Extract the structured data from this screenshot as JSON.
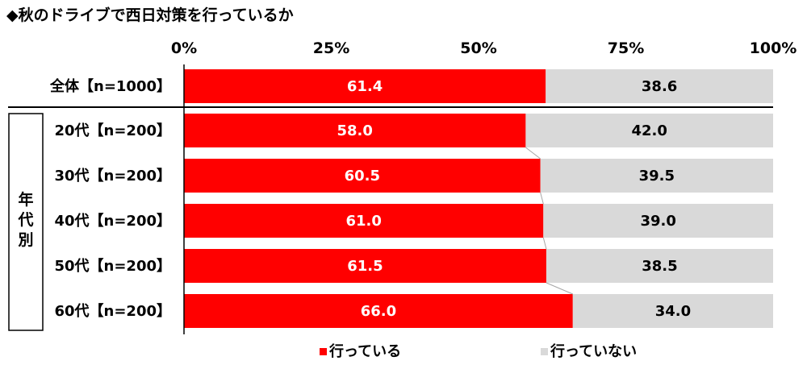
{
  "title": "◆秋のドライブで西日対策を行っているか",
  "group_label": "年代別",
  "chart_data": {
    "type": "bar",
    "orientation": "horizontal",
    "stacked": true,
    "xlim": [
      0,
      100
    ],
    "x_ticks": [
      "0%",
      "25%",
      "50%",
      "75%",
      "100%"
    ],
    "categories": [
      "全体【n=1000】",
      "20代【n=200】",
      "30代【n=200】",
      "40代【n=200】",
      "50代【n=200】",
      "60代【n=200】"
    ],
    "series": [
      {
        "name": "行っている",
        "color": "#ff0000",
        "values": [
          61.4,
          58.0,
          60.5,
          61.0,
          61.5,
          66.0
        ]
      },
      {
        "name": "行っていない",
        "color": "#d9d9d9",
        "values": [
          38.6,
          42.0,
          39.5,
          39.0,
          38.5,
          34.0
        ]
      }
    ],
    "legend_position": "bottom"
  }
}
